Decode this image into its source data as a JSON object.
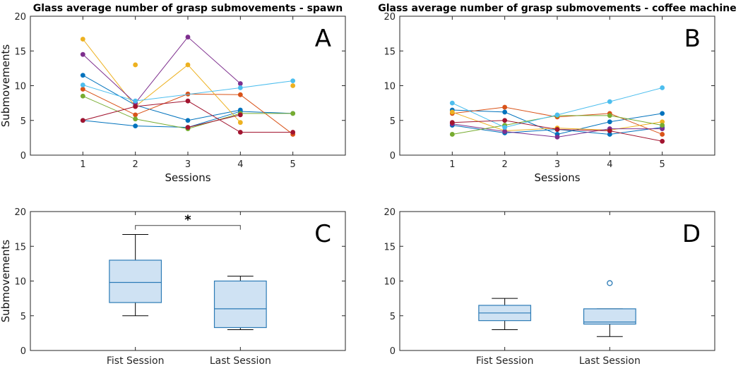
{
  "colors": {
    "box_fill": "#cfe2f3",
    "box_edge": "#2c7bb6",
    "whisker": "#000000",
    "axis": "#262626"
  },
  "chart_data": [
    {
      "id": "A",
      "type": "line",
      "panel_letter": "A",
      "title": "Glass average number of grasp submovements - spawn",
      "xlabel": "Sessions",
      "ylabel": "Submovements",
      "xlim": [
        0,
        6
      ],
      "ylim": [
        0,
        20
      ],
      "xticks": [
        1,
        2,
        3,
        4,
        5
      ],
      "yticks": [
        0,
        5,
        10,
        15,
        20
      ],
      "series": [
        {
          "color": "#0072BD",
          "x": [
            1,
            2,
            3,
            4
          ],
          "y": [
            11.5,
            7.2,
            5.0,
            6.5
          ]
        },
        {
          "color": "#0072BD",
          "x": [
            1,
            2,
            3,
            4,
            5
          ],
          "y": [
            5.0,
            4.2,
            4.0,
            6.3,
            6.0
          ]
        },
        {
          "color": "#D95319",
          "x": [
            1,
            2,
            3,
            4,
            5
          ],
          "y": [
            9.5,
            5.8,
            8.8,
            8.7,
            3.0
          ]
        },
        {
          "color": "#EDB120",
          "x": [
            1,
            2,
            3,
            4
          ],
          "y": [
            16.7,
            7.0,
            13.0,
            4.7
          ]
        },
        {
          "color": "#EDB120",
          "x": [
            2,
            5
          ],
          "y": [
            13.0,
            10.0
          ],
          "markers_only": true
        },
        {
          "color": "#7E2F8E",
          "x": [
            1,
            2,
            3,
            4
          ],
          "y": [
            14.5,
            7.5,
            17.0,
            10.3
          ]
        },
        {
          "color": "#77AC30",
          "x": [
            1,
            2,
            3,
            4,
            5
          ],
          "y": [
            8.5,
            5.2,
            3.8,
            6.0,
            6.0
          ]
        },
        {
          "color": "#4DBEEE",
          "x": [
            1,
            2,
            4,
            5
          ],
          "y": [
            10.1,
            7.8,
            9.7,
            10.7
          ]
        },
        {
          "color": "#A2142F",
          "x": [
            1,
            2,
            3,
            4,
            5
          ],
          "y": [
            5.0,
            7.0,
            7.8,
            3.3,
            3.3
          ]
        },
        {
          "color": "#A2142F",
          "x": [
            3,
            4
          ],
          "y": [
            4.0,
            5.8
          ]
        }
      ]
    },
    {
      "id": "B",
      "type": "line",
      "panel_letter": "B",
      "title": "Glass average number of grasp submovements - coffee machine",
      "xlabel": "Sessions",
      "ylabel": "",
      "xlim": [
        0,
        6
      ],
      "ylim": [
        0,
        20
      ],
      "xticks": [
        1,
        2,
        3,
        4,
        5
      ],
      "yticks": [
        0,
        5,
        10,
        15,
        20
      ],
      "series": [
        {
          "color": "#0072BD",
          "x": [
            1,
            2,
            3,
            4,
            5
          ],
          "y": [
            6.5,
            6.2,
            3.0,
            4.8,
            6.0
          ]
        },
        {
          "color": "#0072BD",
          "x": [
            1,
            2,
            3,
            4,
            5
          ],
          "y": [
            4.3,
            3.2,
            3.7,
            3.0,
            4.0
          ]
        },
        {
          "color": "#D95319",
          "x": [
            1,
            2,
            3,
            4,
            5
          ],
          "y": [
            6.0,
            6.9,
            5.5,
            6.0,
            3.0
          ]
        },
        {
          "color": "#EDB120",
          "x": [
            1,
            2,
            3,
            4,
            5
          ],
          "y": [
            6.2,
            3.5,
            3.9,
            3.6,
            4.8
          ]
        },
        {
          "color": "#7E2F8E",
          "x": [
            1,
            2,
            3,
            4,
            5
          ],
          "y": [
            4.5,
            3.4,
            2.6,
            3.8,
            3.8
          ]
        },
        {
          "color": "#77AC30",
          "x": [
            1,
            2,
            3,
            4,
            5
          ],
          "y": [
            3.0,
            4.3,
            5.7,
            5.7,
            4.3
          ]
        },
        {
          "color": "#4DBEEE",
          "x": [
            1,
            2,
            3,
            4,
            5
          ],
          "y": [
            7.5,
            4.0,
            5.8,
            7.7,
            9.7
          ]
        },
        {
          "color": "#A2142F",
          "x": [
            1,
            2,
            3,
            4,
            5
          ],
          "y": [
            4.7,
            5.0,
            3.7,
            3.5,
            2.0
          ]
        }
      ]
    },
    {
      "id": "C",
      "type": "box",
      "panel_letter": "C",
      "title": "",
      "xlabel": "",
      "ylabel": "Submovements",
      "ylim": [
        0,
        20
      ],
      "yticks": [
        0,
        5,
        10,
        15,
        20
      ],
      "categories": [
        "Fist Session",
        "Last Session"
      ],
      "boxes": [
        {
          "min": 5.0,
          "q1": 6.9,
          "median": 9.8,
          "q3": 13.0,
          "max": 16.7,
          "outliers": []
        },
        {
          "min": 3.0,
          "q1": 3.3,
          "median": 6.0,
          "q3": 10.0,
          "max": 10.7,
          "outliers": []
        }
      ],
      "significance": {
        "between": [
          0,
          1
        ],
        "level_value": 18.0,
        "label": "*"
      }
    },
    {
      "id": "D",
      "type": "box",
      "panel_letter": "D",
      "title": "",
      "xlabel": "",
      "ylabel": "",
      "ylim": [
        0,
        20
      ],
      "yticks": [
        0,
        5,
        10,
        15,
        20
      ],
      "categories": [
        "Fist Session",
        "Last Session"
      ],
      "boxes": [
        {
          "min": 3.0,
          "q1": 4.3,
          "median": 5.4,
          "q3": 6.5,
          "max": 7.5,
          "outliers": []
        },
        {
          "min": 2.0,
          "q1": 3.8,
          "median": 4.1,
          "q3": 6.0,
          "max": 6.0,
          "outliers": [
            9.7
          ]
        }
      ]
    }
  ]
}
